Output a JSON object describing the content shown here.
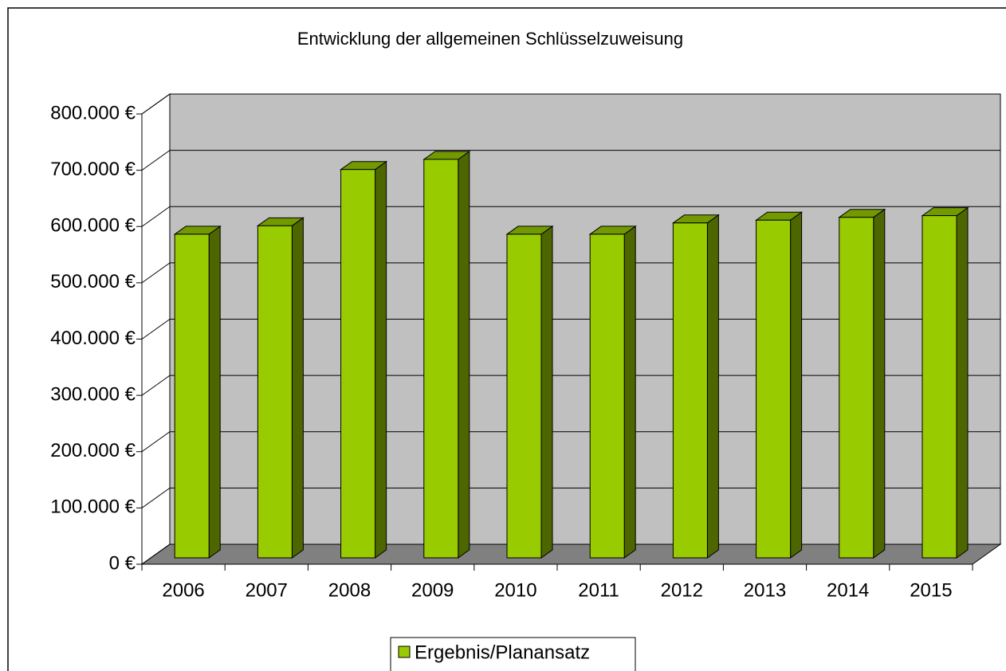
{
  "chart_data": {
    "type": "bar3d",
    "title": "Entwicklung der allgemeinen Schlüsselzuweisung",
    "categories": [
      "2006",
      "2007",
      "2008",
      "2009",
      "2010",
      "2011",
      "2012",
      "2013",
      "2014",
      "2015"
    ],
    "series": [
      {
        "name": "Ergebnis/Planansatz",
        "color": "#99cc00",
        "values": [
          575000,
          590000,
          690000,
          708000,
          575000,
          575000,
          595000,
          600000,
          605000,
          608000
        ]
      }
    ],
    "ylim": [
      0,
      800000
    ],
    "yticks": [
      {
        "value": 0,
        "label": "0 €"
      },
      {
        "value": 100000,
        "label": "100.000 €"
      },
      {
        "value": 200000,
        "label": "200.000 €"
      },
      {
        "value": 300000,
        "label": "300.000 €"
      },
      {
        "value": 400000,
        "label": "400.000 €"
      },
      {
        "value": 500000,
        "label": "500.000 €"
      },
      {
        "value": 600000,
        "label": "600.000 €"
      },
      {
        "value": 700000,
        "label": "700.000 €"
      },
      {
        "value": 800000,
        "label": "800.000 €"
      }
    ],
    "grid": true,
    "legend": "bottom"
  }
}
